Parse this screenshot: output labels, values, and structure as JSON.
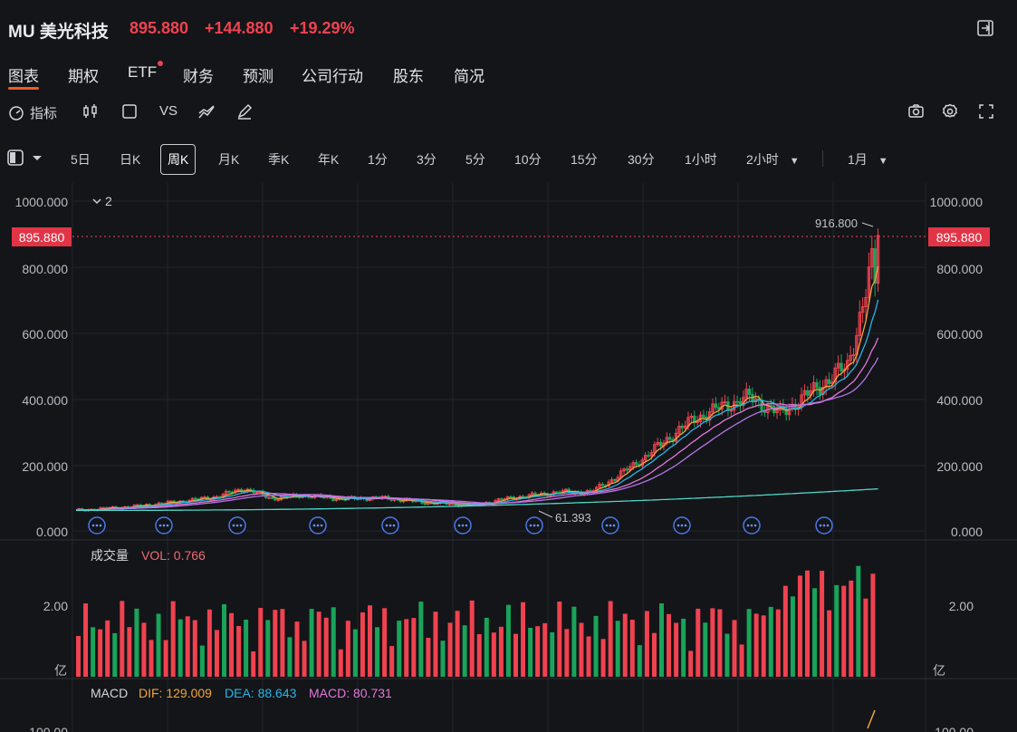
{
  "header": {
    "symbol": "MU 美光科技",
    "price": "895.880",
    "change": "+144.880",
    "change_pct": "+19.29%"
  },
  "tabs": [
    {
      "label": "图表",
      "active": true
    },
    {
      "label": "期权"
    },
    {
      "label": "ETF",
      "dot": true
    },
    {
      "label": "财务"
    },
    {
      "label": "预测"
    },
    {
      "label": "公司行动"
    },
    {
      "label": "股东"
    },
    {
      "label": "简况"
    }
  ],
  "toolbar": {
    "indicator_label": "指标",
    "vs_label": "VS"
  },
  "periods": [
    "5日",
    "日K",
    "周K",
    "月K",
    "季K",
    "年K",
    "1分",
    "3分",
    "5分",
    "10分",
    "15分",
    "30分",
    "1小时",
    "2小时",
    "1月"
  ],
  "active_period": "周K",
  "main_chart": {
    "group_label": "2",
    "y_ticks": [
      "1000.000",
      "800.000",
      "600.000",
      "400.000",
      "200.000",
      "0.000"
    ],
    "current_price_label": "895.880",
    "high_label": "916.800",
    "low_label": "61.393"
  },
  "volume": {
    "title": "成交量",
    "vol_label": "VOL: 0.766",
    "tick": "2.00",
    "unit": "亿"
  },
  "macd": {
    "title": "MACD",
    "dif": "DIF: 129.009",
    "dea": "DEA: 88.643",
    "macd": "MACD: 80.731",
    "tick": "100.00"
  },
  "colors": {
    "up": "#f0424f",
    "down": "#1aa35a",
    "ma5": "#f0a53a",
    "ma10": "#27b5e6",
    "ma20": "#e276d8",
    "ma60": "#b774e6",
    "ma250": "#4fd6c8",
    "accent": "#ef5b26"
  }
}
